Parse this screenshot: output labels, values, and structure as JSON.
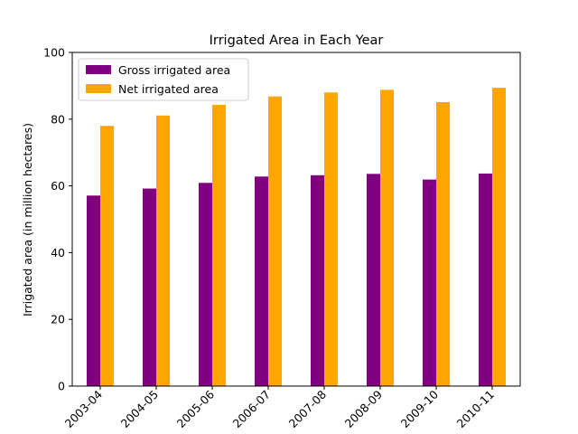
{
  "chart_data": {
    "type": "bar",
    "title": "Irrigated Area in Each Year",
    "xlabel": "",
    "ylabel": "Irrigated area (in million hectares)",
    "categories": [
      "2003-04",
      "2004-05",
      "2005-06",
      "2006-07",
      "2007-08",
      "2008-09",
      "2009-10",
      "2010-11"
    ],
    "series": [
      {
        "name": "Gross irrigated area",
        "color": "#800080",
        "values": [
          57.1,
          59.2,
          60.9,
          62.8,
          63.2,
          63.6,
          61.9,
          63.7
        ]
      },
      {
        "name": "Net irrigated area",
        "color": "#ffa500",
        "values": [
          78.0,
          81.1,
          84.3,
          86.8,
          88.0,
          88.8,
          85.1,
          89.4
        ]
      }
    ],
    "ylim": [
      0,
      100
    ],
    "yticks": [
      0,
      20,
      40,
      60,
      80,
      100
    ],
    "grid": false,
    "legend_position": "top-left",
    "xtick_rotation": 45
  }
}
